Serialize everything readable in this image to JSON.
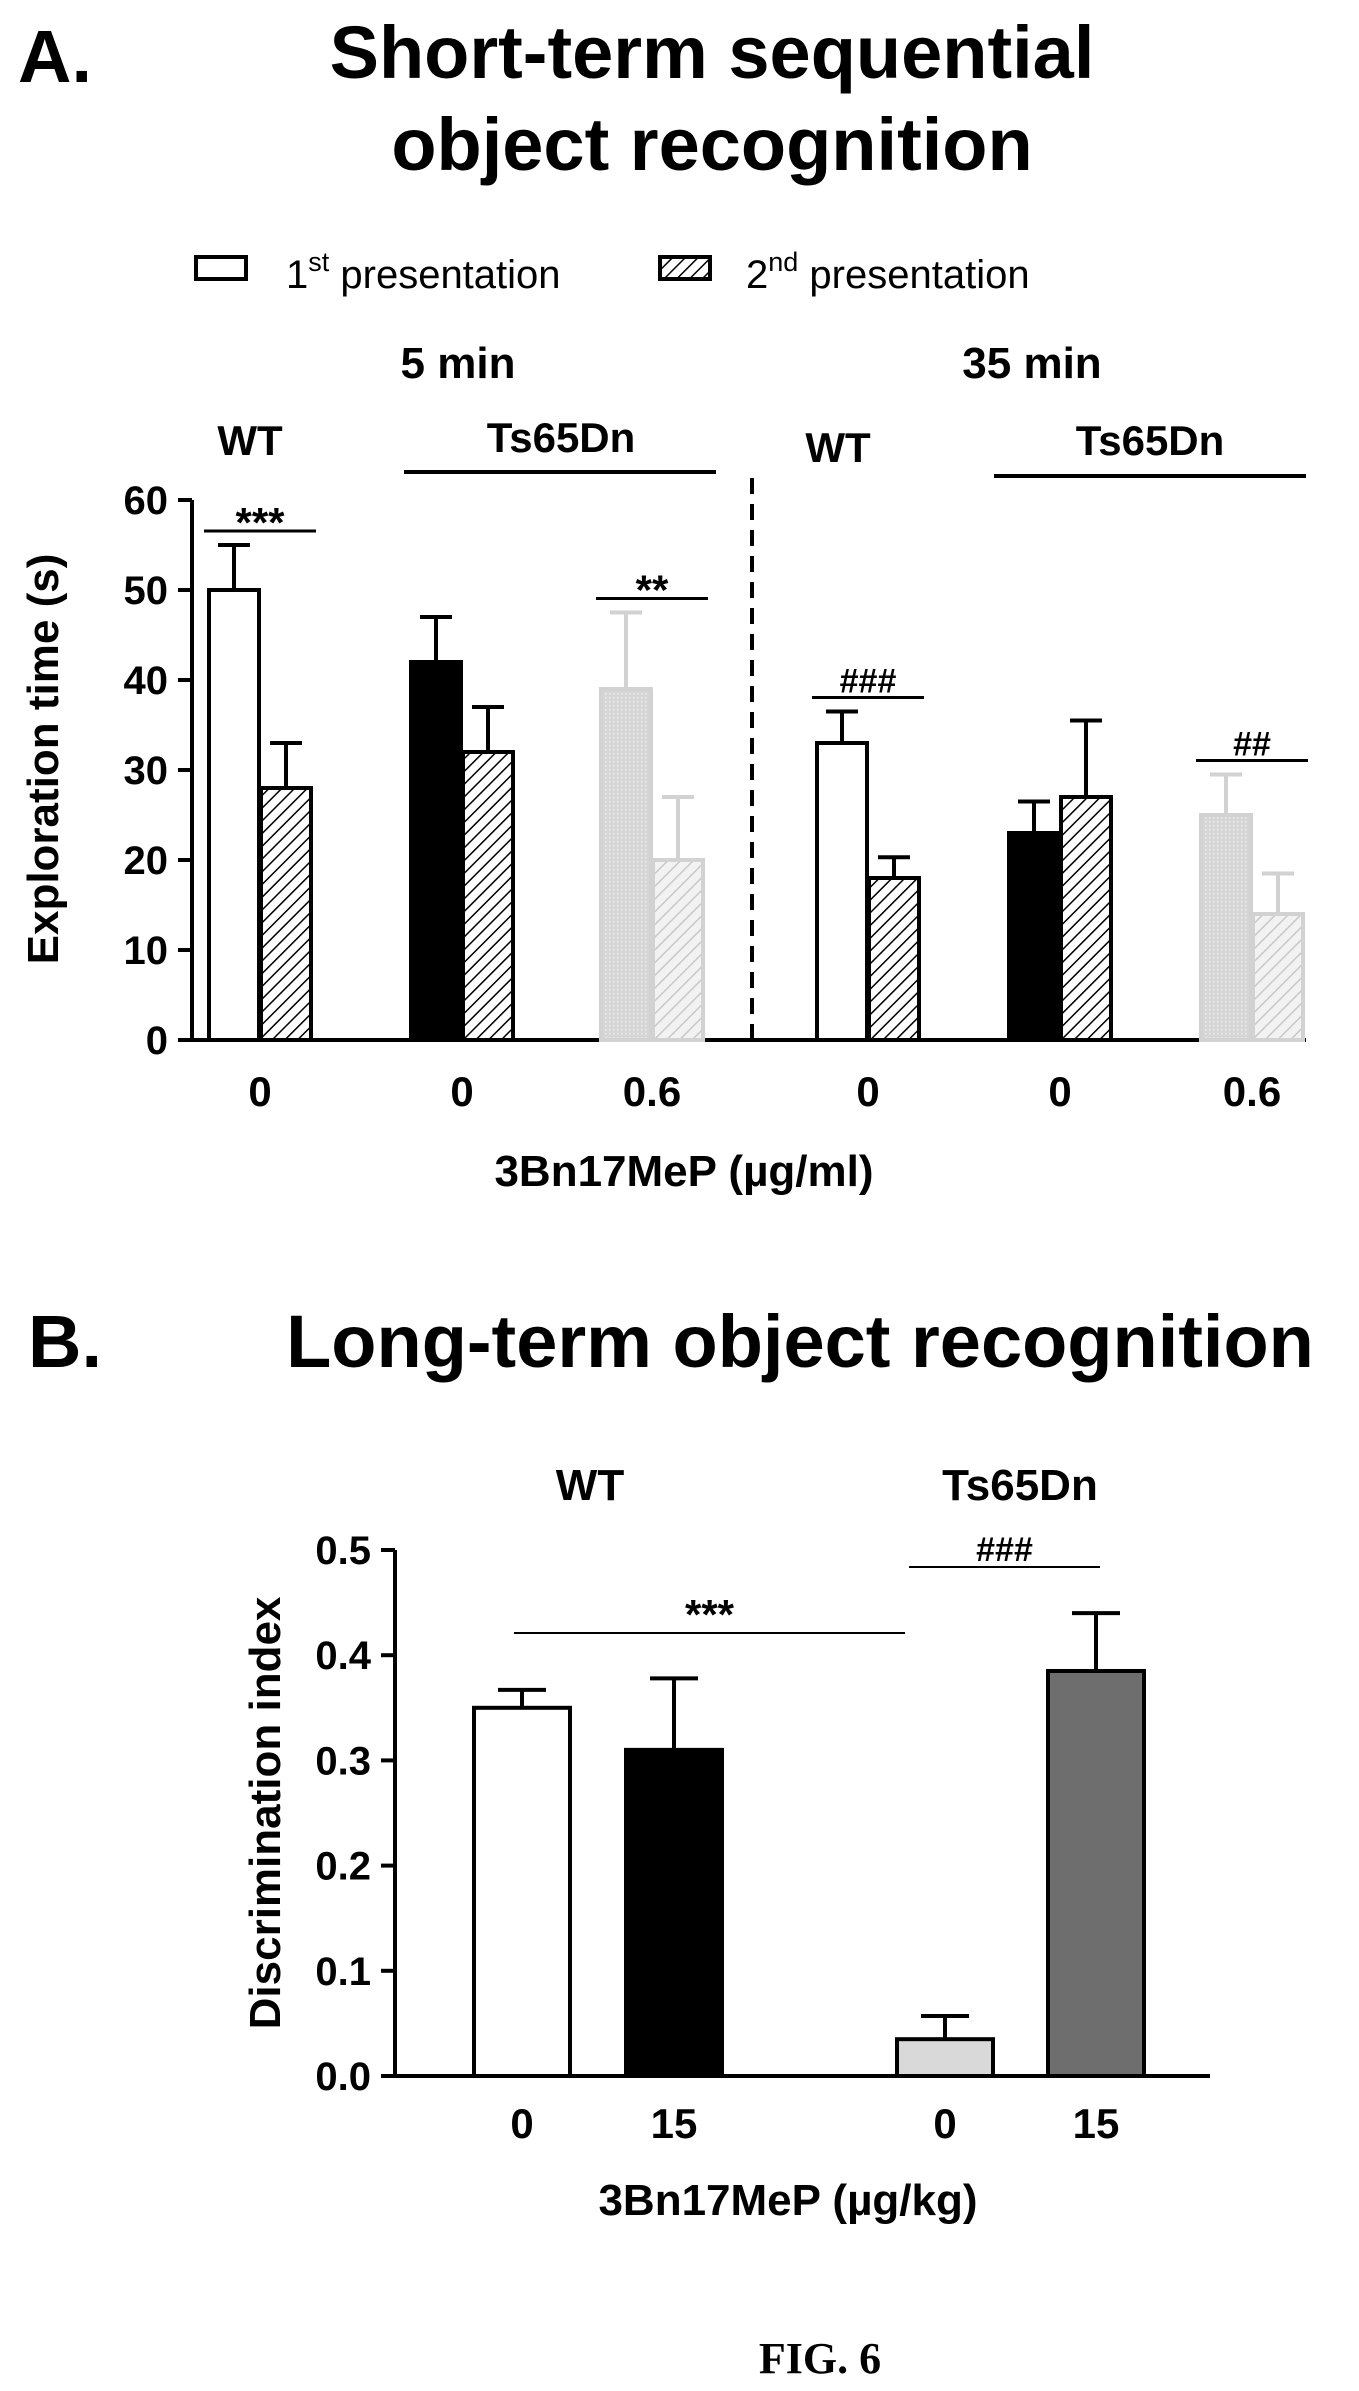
{
  "chart_data": [
    {
      "panel_label": "A.",
      "type": "bar",
      "title": "Short-term sequential object recognition",
      "title_lines": [
        "Short-term sequential",
        "object recognition"
      ],
      "xlabel": "3Bn17MeP (µg/ml)",
      "ylabel": "Exploration time (s)",
      "ylim": [
        0,
        60
      ],
      "yticks": [
        "0",
        "10",
        "20",
        "30",
        "40",
        "50",
        "60"
      ],
      "legend": [
        {
          "base": "1",
          "sup": "st",
          "text": " presentation",
          "pattern": "open"
        },
        {
          "base": "2",
          "sup": "nd",
          "text": " presentation",
          "pattern": "hatched"
        }
      ],
      "legend_position": "top",
      "interval_labels": [
        "5 min",
        "35 min"
      ],
      "group_labels": [
        "WT",
        "Ts65Dn",
        "WT",
        "Ts65Dn"
      ],
      "categories": [
        "0",
        "0",
        "0.6",
        "0",
        "0",
        "0.6"
      ],
      "series": [
        {
          "name": "1st presentation",
          "values": [
            50,
            42,
            39,
            33,
            23,
            25
          ],
          "errors": [
            5,
            5,
            8.5,
            3.5,
            3.5,
            4.5
          ]
        },
        {
          "name": "2nd presentation",
          "values": [
            28,
            32,
            20,
            18,
            27,
            14
          ],
          "errors": [
            5,
            5,
            7,
            2.3,
            8.5,
            4.5
          ]
        }
      ],
      "colors": [
        "#ffffff",
        "#000000",
        "#d9d9d9",
        "#ffffff",
        "#000000",
        "#d9d9d9"
      ],
      "significance": [
        {
          "label": "***",
          "category": 0
        },
        {
          "label": "**",
          "category": 2
        },
        {
          "label": "###",
          "category": 3
        },
        {
          "label": "##",
          "category": 5
        }
      ],
      "divider": "dashed"
    },
    {
      "panel_label": "B.",
      "type": "bar",
      "title": "Long-term object recognition",
      "xlabel": "3Bn17MeP (µg/kg)",
      "ylabel": "Discrimination index",
      "ylim": [
        0,
        0.5
      ],
      "yticks": [
        "0.0",
        "0.1",
        "0.2",
        "0.3",
        "0.4",
        "0.5"
      ],
      "group_labels": [
        "WT",
        "Ts65Dn"
      ],
      "categories": [
        "0",
        "15",
        "0",
        "15"
      ],
      "values": [
        0.35,
        0.31,
        0.035,
        0.385
      ],
      "errors": [
        0.017,
        0.068,
        0.022,
        0.055
      ],
      "colors": [
        "#ffffff",
        "#000000",
        "#d9d9d9",
        "#6e6e6e"
      ],
      "significance": [
        {
          "label": "***",
          "between": [
            0,
            2
          ]
        },
        {
          "label": "###",
          "between": [
            2,
            3
          ]
        }
      ]
    }
  ],
  "figure_label": "FIG. 6"
}
